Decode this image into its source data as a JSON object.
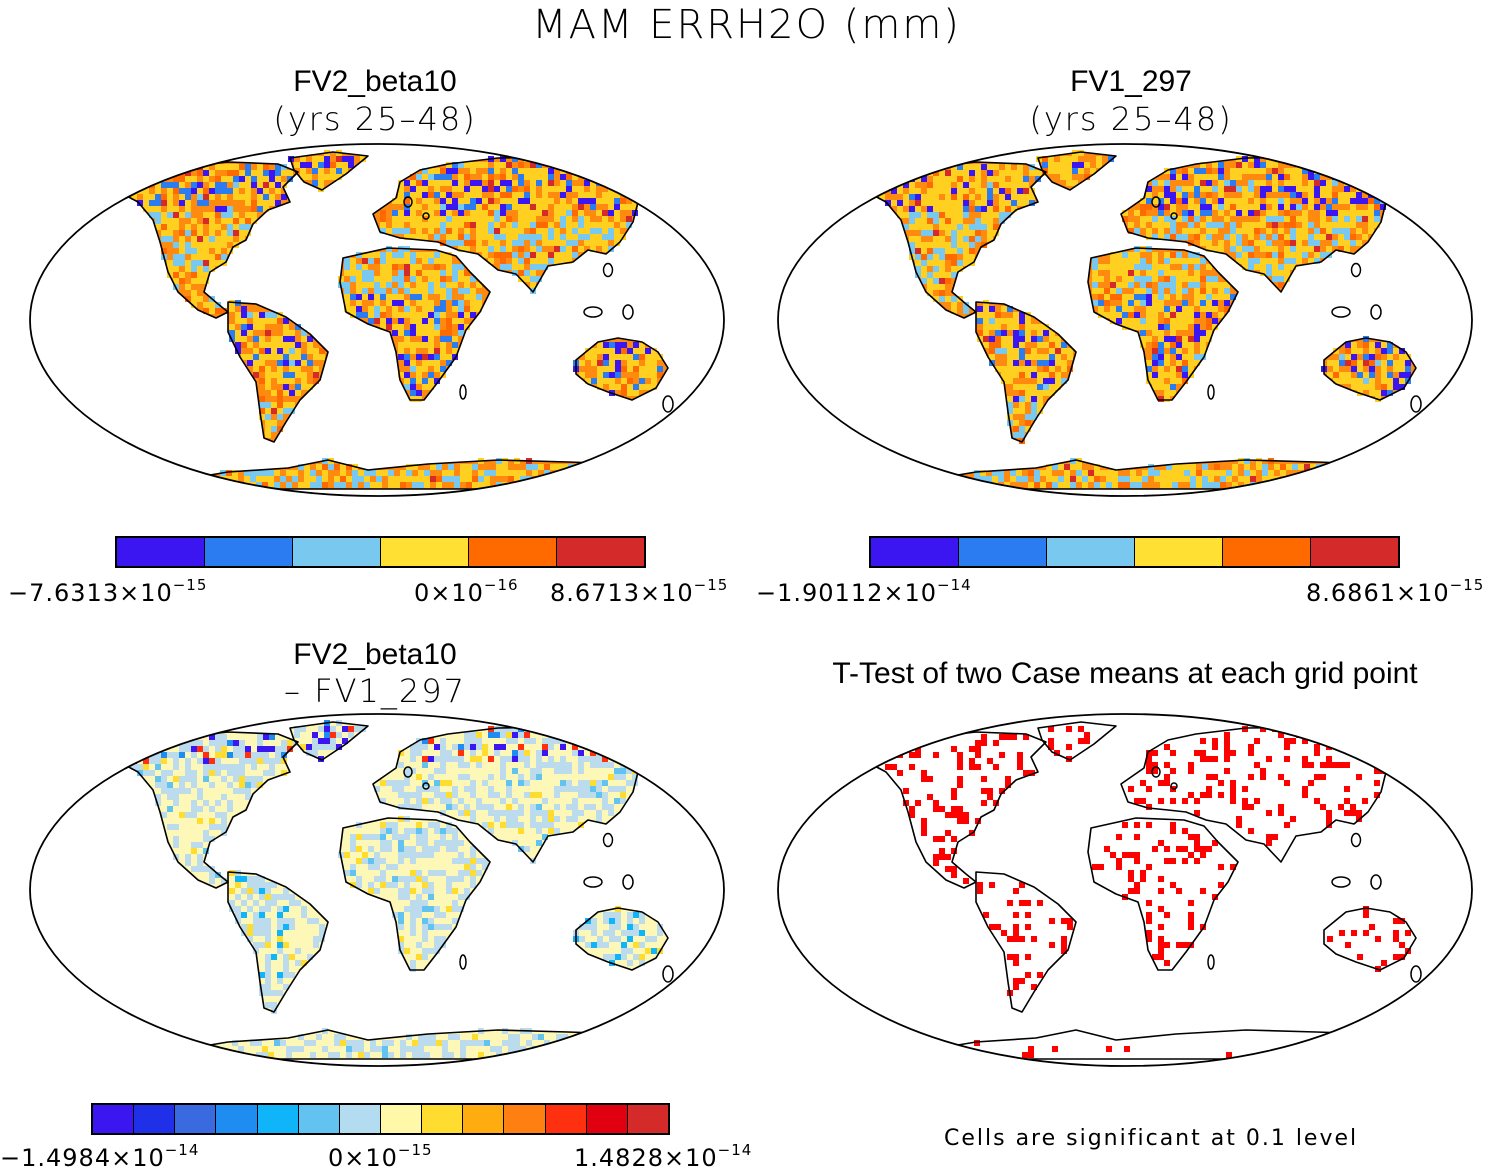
{
  "title": "MAM ERRH2O (mm)",
  "colors": {
    "six": [
      "#3b16f0",
      "#2a7cf0",
      "#78c8f0",
      "#ffe033",
      "#ff6a00",
      "#d42a2a"
    ],
    "fourteen": [
      "#3b16f0",
      "#2030e8",
      "#3a6ae0",
      "#1e8cf0",
      "#10b4f8",
      "#62c2f0",
      "#b4dcf0",
      "#fff8a8",
      "#ffdc30",
      "#ffac10",
      "#ff8010",
      "#ff3010",
      "#e00010",
      "#d42a2a"
    ],
    "sig": "#ff0000",
    "land_a": "#ff8a10",
    "land_a2": "#ffd020",
    "land_c": "#fdf7b8",
    "land_c2": "#bcdcee"
  },
  "panels": [
    {
      "id": "fv2",
      "title": "FV2_beta10",
      "subtitle": "(yrs 25–48)",
      "cb_left": "−7.6313×10",
      "cb_left_exp": "−15",
      "cb_mid": "0×10",
      "cb_mid_exp": "−16",
      "cb_right": "8.6713×10",
      "cb_right_exp": "−15"
    },
    {
      "id": "fv1",
      "title": "FV1_297",
      "subtitle": "(yrs 25–48)",
      "cb_left": "−1.90112×10",
      "cb_left_exp": "−14",
      "cb_right": "8.6861×10",
      "cb_right_exp": "−15"
    },
    {
      "id": "diff",
      "title": "FV2_beta10",
      "subtitle": "– FV1_297",
      "cb_left": "−1.4984×10",
      "cb_left_exp": "−14",
      "cb_mid": "0×10",
      "cb_mid_exp": "−15",
      "cb_right": "1.4828×10",
      "cb_right_exp": "−14"
    },
    {
      "id": "ttest",
      "title": "T-Test of two Case means at each grid point",
      "note": "Cells are significant at 0.1 level"
    }
  ]
}
